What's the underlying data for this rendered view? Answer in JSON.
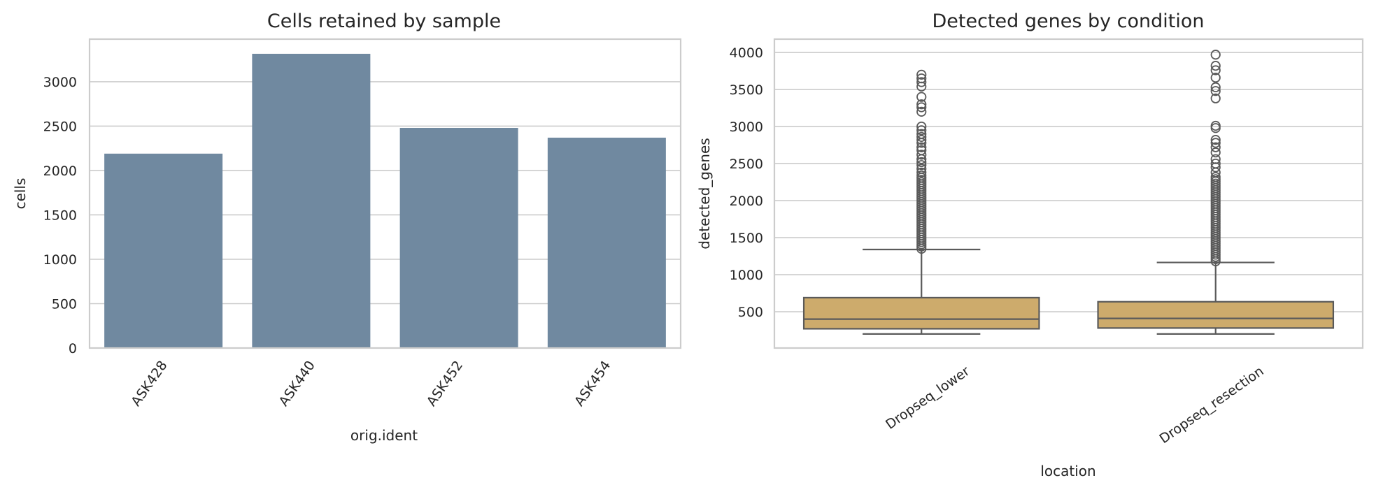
{
  "chart_data": [
    {
      "type": "bar",
      "title": "Cells retained by sample",
      "xlabel": "orig.ident",
      "ylabel": "cells",
      "categories": [
        "ASK428",
        "ASK440",
        "ASK452",
        "ASK454"
      ],
      "values": [
        2190,
        3315,
        2480,
        2370
      ],
      "ylim": [
        0,
        3480
      ],
      "yticks": [
        0,
        500,
        1000,
        1500,
        2000,
        2500,
        3000
      ],
      "bar_color": "#7089a0",
      "grid": true,
      "xtick_rotation": 55
    },
    {
      "type": "box",
      "title": "Detected genes by condition",
      "xlabel": "location",
      "ylabel": "detected_genes",
      "categories": [
        "Dropseq_lower",
        "Dropseq_resection"
      ],
      "boxes": [
        {
          "category": "Dropseq_lower",
          "whisker_low": 200,
          "q1": 270,
          "median": 400,
          "q3": 690,
          "whisker_high": 1340,
          "outliers": [
            1350,
            1380,
            1410,
            1440,
            1470,
            1500,
            1530,
            1560,
            1590,
            1620,
            1650,
            1680,
            1710,
            1740,
            1770,
            1800,
            1830,
            1860,
            1890,
            1920,
            1950,
            1980,
            2010,
            2040,
            2070,
            2100,
            2130,
            2160,
            2190,
            2220,
            2250,
            2280,
            2310,
            2340,
            2380,
            2430,
            2480,
            2520,
            2560,
            2620,
            2680,
            2720,
            2780,
            2820,
            2860,
            2900,
            2950,
            3000,
            3200,
            3260,
            3300,
            3400,
            3540,
            3600,
            3650,
            3700
          ]
        },
        {
          "category": "Dropseq_resection",
          "whisker_low": 200,
          "q1": 280,
          "median": 410,
          "q3": 635,
          "whisker_high": 1165,
          "outliers": [
            1180,
            1210,
            1240,
            1270,
            1300,
            1330,
            1360,
            1390,
            1420,
            1450,
            1480,
            1510,
            1540,
            1570,
            1600,
            1630,
            1660,
            1690,
            1720,
            1750,
            1780,
            1810,
            1840,
            1870,
            1900,
            1930,
            1960,
            1990,
            2020,
            2050,
            2080,
            2110,
            2140,
            2170,
            2200,
            2230,
            2260,
            2290,
            2320,
            2380,
            2450,
            2500,
            2560,
            2650,
            2720,
            2780,
            2820,
            2980,
            3010,
            3380,
            3480,
            3530,
            3660,
            3760,
            3820,
            3970
          ]
        }
      ],
      "ylim": [
        10,
        4180
      ],
      "yticks": [
        500,
        1000,
        1500,
        2000,
        2500,
        3000,
        3500,
        4000
      ],
      "box_color": "#cdab6c",
      "line_color": "#5a5a5a",
      "grid": true,
      "xtick_rotation": 35
    }
  ]
}
